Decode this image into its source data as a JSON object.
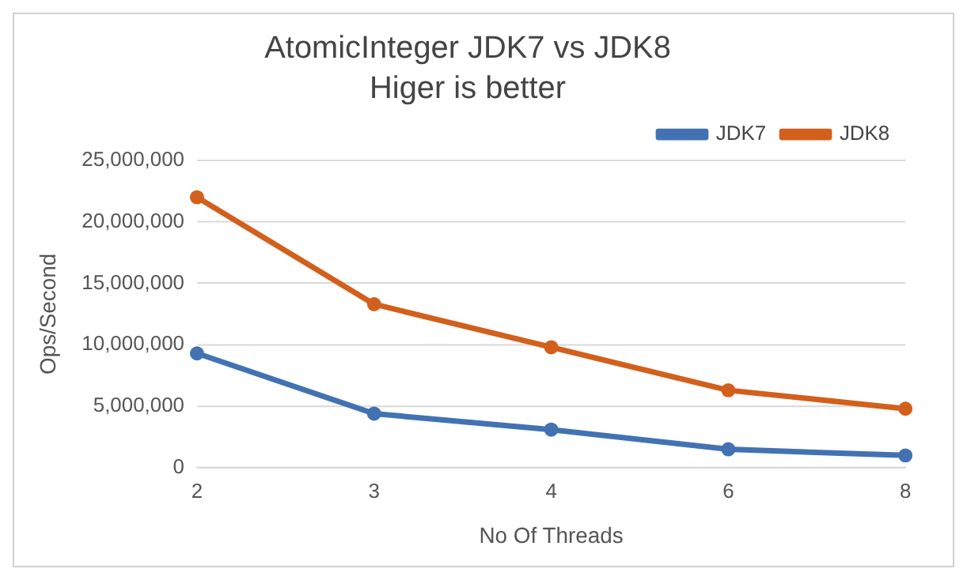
{
  "chart_data": {
    "type": "line",
    "title": "AtomicInteger JDK7 vs JDK8",
    "subtitle": "Higer is better",
    "xlabel": "No Of Threads",
    "ylabel": "Ops/Second",
    "categories": [
      "2",
      "3",
      "4",
      "6",
      "8"
    ],
    "series": [
      {
        "name": "JDK7",
        "color": "#4272b2",
        "values": [
          9300000,
          4400000,
          3100000,
          1500000,
          1000000
        ]
      },
      {
        "name": "JDK8",
        "color": "#d2601c",
        "values": [
          22000000,
          13300000,
          9800000,
          6300000,
          4800000
        ]
      }
    ],
    "ylim": [
      0,
      25000000
    ],
    "yticks": [
      {
        "value": 0,
        "label": "0"
      },
      {
        "value": 5000000,
        "label": "5,000,000"
      },
      {
        "value": 10000000,
        "label": "10,000,000"
      },
      {
        "value": 15000000,
        "label": "15,000,000"
      },
      {
        "value": 20000000,
        "label": "20,000,000"
      },
      {
        "value": 25000000,
        "label": "25,000,000"
      }
    ],
    "grid": "y",
    "legend": "top right",
    "marker": "circle",
    "line_style": "solid"
  }
}
